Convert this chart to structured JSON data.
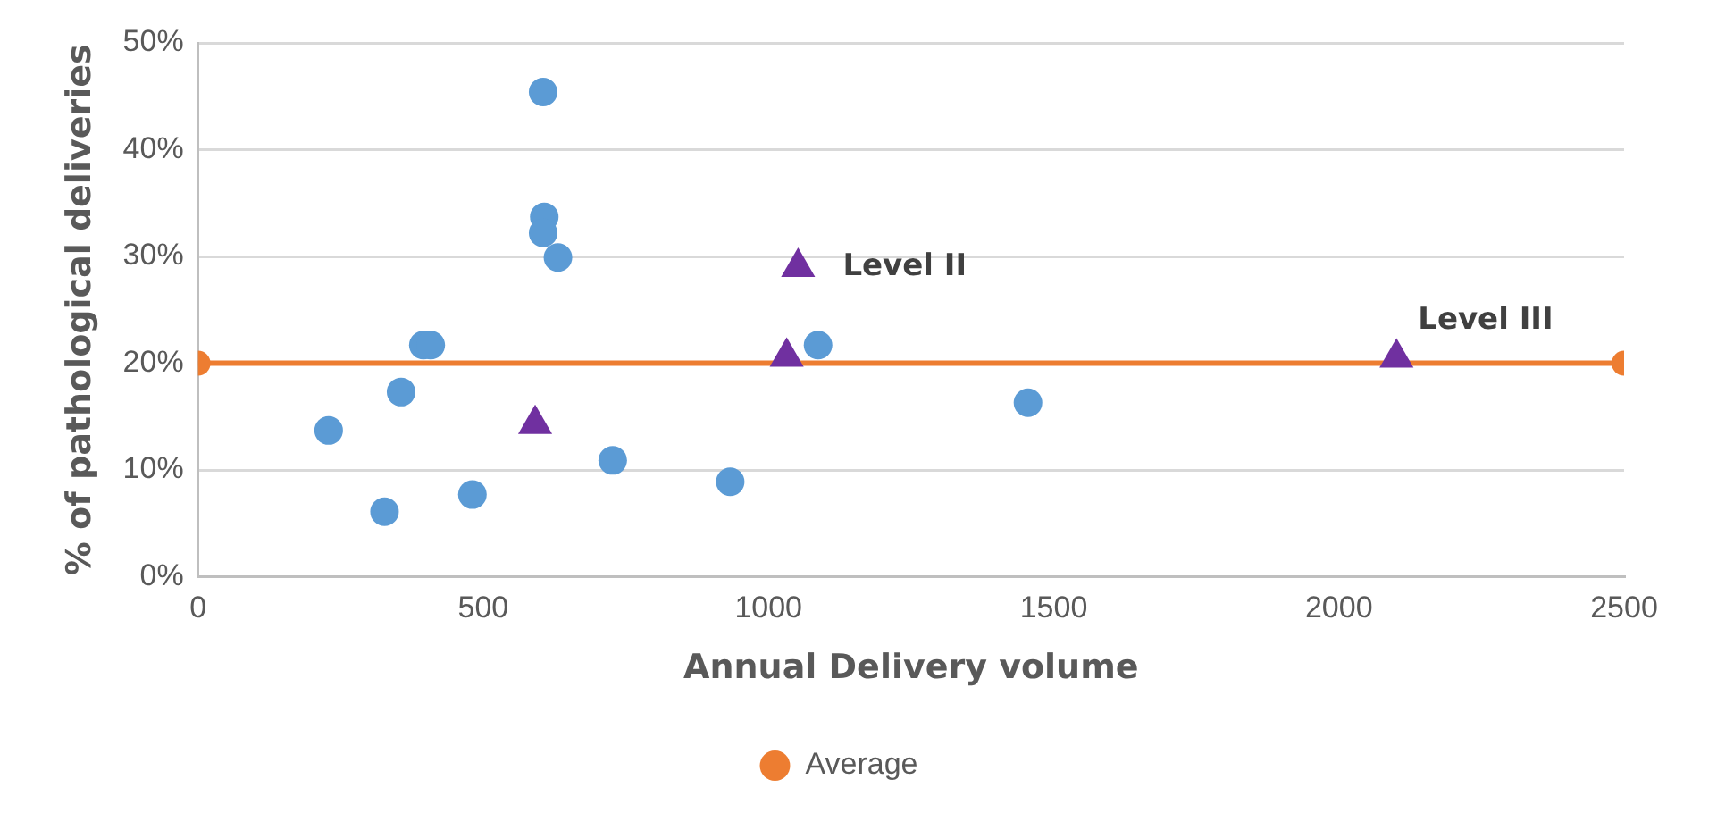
{
  "chart_data": {
    "type": "scatter",
    "xlabel": "Annual Delivery volume",
    "ylabel": "% of pathological deliveries",
    "xlim": [
      0,
      2500
    ],
    "xticks": [
      0,
      500,
      1000,
      1500,
      2000,
      2500
    ],
    "ylim": [
      0,
      50
    ],
    "yticks": [
      {
        "value": 0,
        "label": "0%"
      },
      {
        "value": 10,
        "label": "10%"
      },
      {
        "value": 20,
        "label": "20%"
      },
      {
        "value": 30,
        "label": "30%"
      },
      {
        "value": 40,
        "label": "40%"
      },
      {
        "value": 50,
        "label": "50%"
      }
    ],
    "grid": "y",
    "legend": "bottom",
    "series": [
      {
        "color": "#5b9bd5",
        "marker": "circle",
        "x": [
          605,
          607,
          605,
          631,
          395,
          408,
          356,
          229,
          327,
          481,
          727,
          933,
          1087,
          1455
        ],
        "values": [
          45.4,
          33.7,
          32.2,
          29.9,
          21.7,
          21.7,
          17.3,
          13.7,
          6.1,
          7.7,
          10.9,
          8.9,
          21.7,
          16.3
        ]
      },
      {
        "color": "#7030a0",
        "marker": "triangle",
        "x": [
          591,
          1052,
          1032,
          2101
        ],
        "values": [
          14.3,
          29.0,
          20.6,
          20.5
        ]
      },
      {
        "type": "line",
        "name": "Average",
        "color": "#ed7d31",
        "marker": "circle",
        "line_style": "solid",
        "x": [
          0,
          2500
        ],
        "values": [
          20,
          20
        ]
      }
    ],
    "annotations": [
      {
        "text": "Level II",
        "x": 1052,
        "y": 29.0
      },
      {
        "text": "Level III",
        "x": 2101,
        "y": 20.5
      }
    ]
  }
}
